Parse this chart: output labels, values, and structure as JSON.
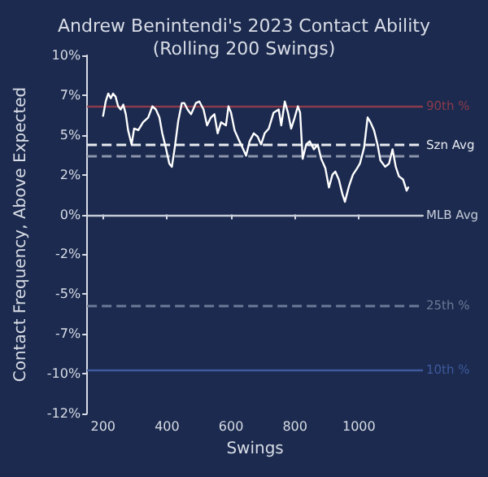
{
  "chart_data": {
    "type": "line",
    "title": "Andrew Benintendi's 2023 Contact Ability\n(Rolling 200 Swings)",
    "xlabel": "Swings",
    "ylabel": "Contact Frequency, Above Expected",
    "x": [
      200,
      208,
      216,
      224,
      231,
      239,
      247,
      255,
      263,
      271,
      278,
      289,
      297,
      310,
      325,
      341,
      354,
      365,
      376,
      385,
      396,
      407,
      415,
      424,
      435,
      446,
      454,
      464,
      475,
      490,
      501,
      514,
      525,
      537,
      548,
      558,
      569,
      584,
      592,
      600,
      611,
      624,
      636,
      647,
      658,
      671,
      683,
      694,
      705,
      718,
      733,
      749,
      757,
      768,
      778,
      788,
      799,
      809,
      816,
      824,
      835,
      846,
      859,
      871,
      882,
      895,
      906,
      917,
      926,
      937,
      948,
      956,
      969,
      981,
      994,
      1003,
      1016,
      1027,
      1036,
      1047,
      1058,
      1067,
      1082,
      1094,
      1105,
      1115,
      1125,
      1138,
      1149,
      1154
    ],
    "series": [
      {
        "color": "#ffffff",
        "values": [
          6.2,
          7.1,
          7.6,
          7.3,
          7.6,
          7.4,
          6.8,
          6.6,
          6.9,
          6.3,
          5.3,
          4.4,
          5.4,
          5.3,
          5.8,
          6.1,
          6.8,
          6.6,
          6.1,
          5.1,
          4.2,
          3.2,
          3.0,
          4.2,
          5.9,
          7.0,
          7.0,
          6.6,
          6.3,
          7.0,
          7.1,
          6.6,
          5.6,
          6.1,
          6.3,
          5.1,
          5.8,
          5.6,
          6.8,
          6.4,
          5.3,
          4.7,
          4.2,
          3.7,
          4.6,
          5.1,
          4.9,
          4.4,
          5.1,
          5.4,
          6.4,
          6.6,
          5.6,
          7.1,
          6.4,
          5.4,
          6.1,
          6.8,
          6.4,
          3.5,
          4.4,
          4.6,
          4.1,
          4.4,
          3.5,
          2.9,
          1.7,
          2.5,
          2.7,
          2.2,
          1.3,
          0.8,
          1.8,
          2.5,
          2.9,
          3.2,
          4.2,
          6.1,
          5.8,
          5.3,
          4.4,
          3.4,
          3.0,
          3.2,
          4.1,
          3.0,
          2.4,
          2.2,
          1.5,
          1.7
        ]
      }
    ],
    "xlim": [
      150,
      1200
    ],
    "xticks": [
      200,
      400,
      600,
      800,
      1000
    ],
    "ylim": [
      -12.5,
      10
    ],
    "yticks": [
      {
        "value": -12.5,
        "label": "-12%"
      },
      {
        "value": -10,
        "label": "-10%"
      },
      {
        "value": -7.5,
        "label": "-7%"
      },
      {
        "value": -5,
        "label": "-5%"
      },
      {
        "value": -2.5,
        "label": "-2%"
      },
      {
        "value": 0,
        "label": "0%"
      },
      {
        "value": 2.5,
        "label": "2%"
      },
      {
        "value": 5,
        "label": "5%"
      },
      {
        "value": 7.5,
        "label": "7%"
      },
      {
        "value": 10,
        "label": "10%"
      }
    ],
    "ref_lines": [
      {
        "axis": "y",
        "value": 6.85,
        "label": "90th %",
        "color": "#8c3b4c",
        "line_style": "solid"
      },
      {
        "axis": "y",
        "value": 4.35,
        "label": "Szn Avg",
        "color": "#e8eaf0",
        "line_style": "dashed"
      },
      {
        "axis": "y",
        "value": 3.7,
        "label": null,
        "color": "#8a93aa",
        "line_style": "dashed"
      },
      {
        "axis": "y",
        "value": 0,
        "label": "MLB Avg",
        "color": "#c5cad8",
        "line_style": "solid"
      },
      {
        "axis": "y",
        "value": -5.7,
        "label": "25th %",
        "color": "#6c7896",
        "line_style": "dashed"
      },
      {
        "axis": "y",
        "value": -9.75,
        "label": "10th %",
        "color": "#3f5a9e",
        "line_style": "solid"
      }
    ],
    "grid": false,
    "marker": "none",
    "line_style": "solid"
  }
}
